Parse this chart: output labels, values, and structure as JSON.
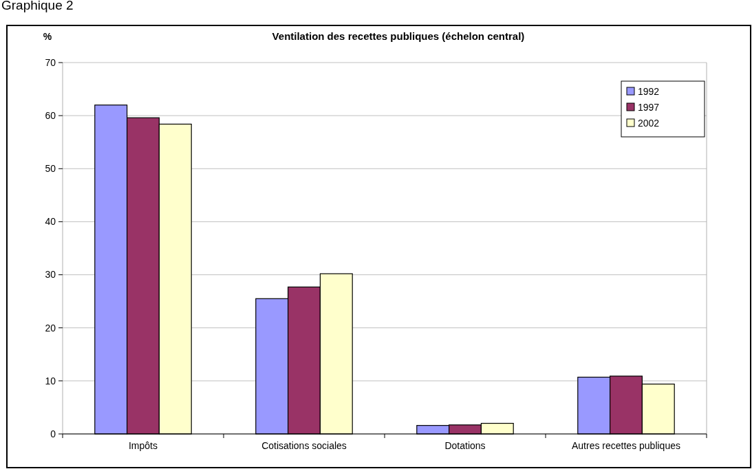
{
  "chart_data": {
    "type": "bar",
    "title": "Ventilation des recettes publiques (échelon central)",
    "ylabel": "%",
    "annotations": [
      "Graphique 2"
    ],
    "categories": [
      "Impôts",
      "Cotisations sociales",
      "Dotations",
      "Autres recettes publiques"
    ],
    "series": [
      {
        "name": "1992",
        "color": "#9999ff",
        "values": [
          62.0,
          25.5,
          1.6,
          10.7
        ]
      },
      {
        "name": "1997",
        "color": "#993366",
        "values": [
          59.6,
          27.7,
          1.7,
          10.9
        ]
      },
      {
        "name": "2002",
        "color": "#ffffcc",
        "values": [
          58.4,
          30.2,
          2.0,
          9.4
        ]
      }
    ],
    "ylim": [
      0,
      70
    ],
    "yticks": [
      0,
      10,
      20,
      30,
      40,
      50,
      60,
      70
    ],
    "grid": "y",
    "legend": "top right"
  }
}
